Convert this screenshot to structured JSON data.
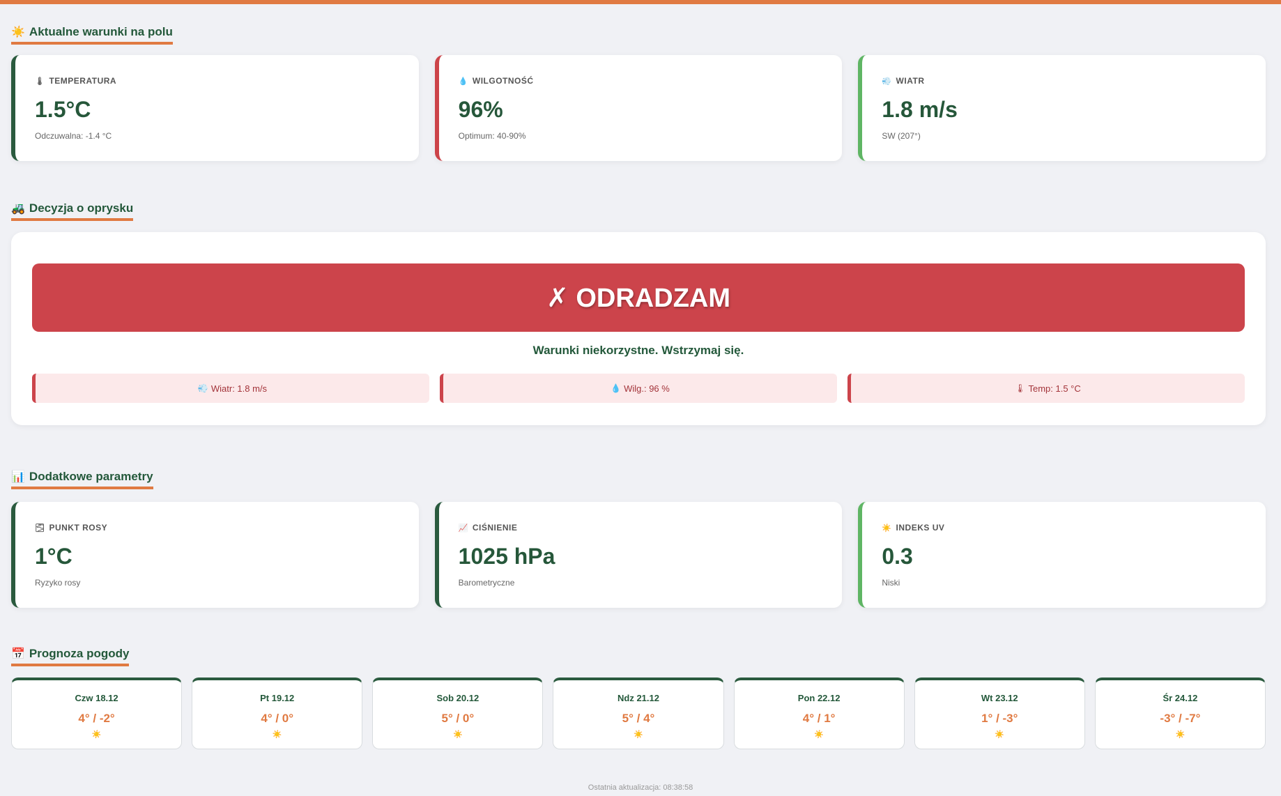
{
  "sections": {
    "current": {
      "emoji": "☀️",
      "title": "Aktualne warunki na polu"
    },
    "decision": {
      "emoji": "🚜",
      "title": "Decyzja o oprysku"
    },
    "extra": {
      "emoji": "📊",
      "title": "Dodatkowe parametry"
    },
    "forecast": {
      "emoji": "📅",
      "title": "Prognoza pogody"
    }
  },
  "current_cards": [
    {
      "icon": "🌡",
      "label": "TEMPERATURA",
      "value": "1.5°C",
      "sub": "Odczuwalna: -1.4 °C",
      "accent": "#2a5a3e"
    },
    {
      "icon": "💧",
      "label": "WILGOTNOŚĆ",
      "value": "96%",
      "sub": "Optimum: 40-90%",
      "accent": "#cc4449"
    },
    {
      "icon": "💨",
      "label": "WIATR",
      "value": "1.8 m/s",
      "sub": "SW (207°)",
      "accent": "#5fb564"
    }
  ],
  "decision": {
    "verdict": "✗ ODRADZAM",
    "verdict_color": "#cc444b",
    "message": "Warunki niekorzystne. Wstrzymaj się.",
    "reasons": [
      {
        "icon": "💨",
        "text": "Wiatr: 1.8 m/s"
      },
      {
        "icon": "💧",
        "text": "Wilg.: 96 %"
      },
      {
        "icon": "🌡",
        "text": "Temp: 1.5 °C"
      }
    ]
  },
  "extra_cards": [
    {
      "icon": "🌫",
      "label": "PUNKT ROSY",
      "value": "1°C",
      "sub": "Ryzyko rosy",
      "accent": "#2a5a3e"
    },
    {
      "icon": "📈",
      "label": "CIŚNIENIE",
      "value": "1025 hPa",
      "sub": "Barometryczne",
      "accent": "#2a5a3e"
    },
    {
      "icon": "☀️",
      "label": "INDEKS UV",
      "value": "0.3",
      "sub": "Niski",
      "accent": "#5fb564"
    }
  ],
  "forecast": [
    {
      "day": "Czw 18.12",
      "temp": "4° / -2°",
      "icon": "☀️"
    },
    {
      "day": "Pt 19.12",
      "temp": "4° / 0°",
      "icon": "☀️"
    },
    {
      "day": "Sob 20.12",
      "temp": "5° / 0°",
      "icon": "☀️"
    },
    {
      "day": "Ndz 21.12",
      "temp": "5° / 4°",
      "icon": "☀️"
    },
    {
      "day": "Pon 22.12",
      "temp": "4° / 1°",
      "icon": "☀️"
    },
    {
      "day": "Wt 23.12",
      "temp": "1° / -3°",
      "icon": "☀️"
    },
    {
      "day": "Śr 24.12",
      "temp": "-3° / -7°",
      "icon": "☀️"
    }
  ],
  "footer": "Ostatnia aktualizacja: 08:38:58",
  "colors": {
    "accent": "#e07a42",
    "primary": "#2a5a3e",
    "danger": "#cc444b",
    "good": "#5fb564"
  }
}
